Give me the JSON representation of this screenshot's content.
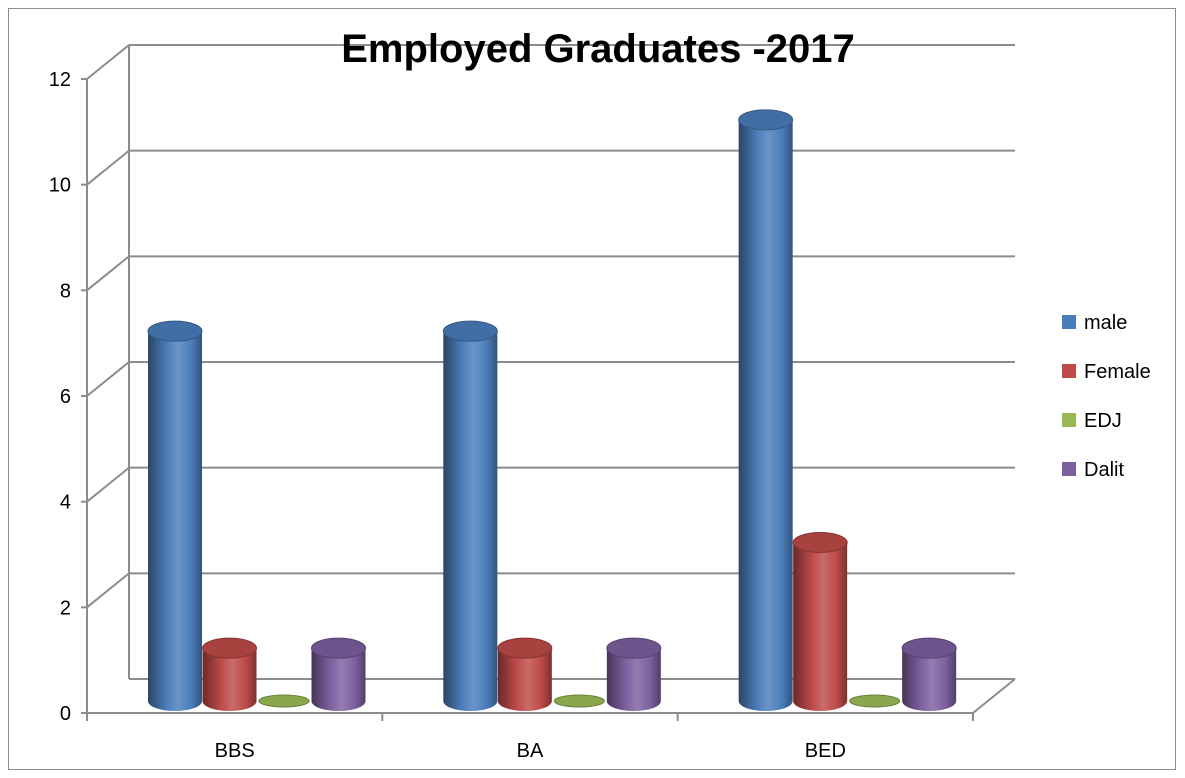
{
  "chart_data": {
    "type": "bar",
    "title": "Employed Graduates -2017",
    "categories": [
      "BBS",
      "BA",
      "BED"
    ],
    "series": [
      {
        "name": "male",
        "values": [
          7,
          7,
          11
        ],
        "color": "#4a7ebb"
      },
      {
        "name": "Female",
        "values": [
          1,
          1,
          3
        ],
        "color": "#be4b48"
      },
      {
        "name": "EDJ",
        "values": [
          0,
          0,
          0
        ],
        "color": "#98b954"
      },
      {
        "name": "Dalit",
        "values": [
          1,
          1,
          1
        ],
        "color": "#7d60a0"
      }
    ],
    "y_ticks": [
      "0",
      "2",
      "4",
      "6",
      "8",
      "10",
      "12"
    ],
    "ylim": [
      0,
      12
    ],
    "grid": true,
    "legend_position": "right",
    "three_d": true
  }
}
